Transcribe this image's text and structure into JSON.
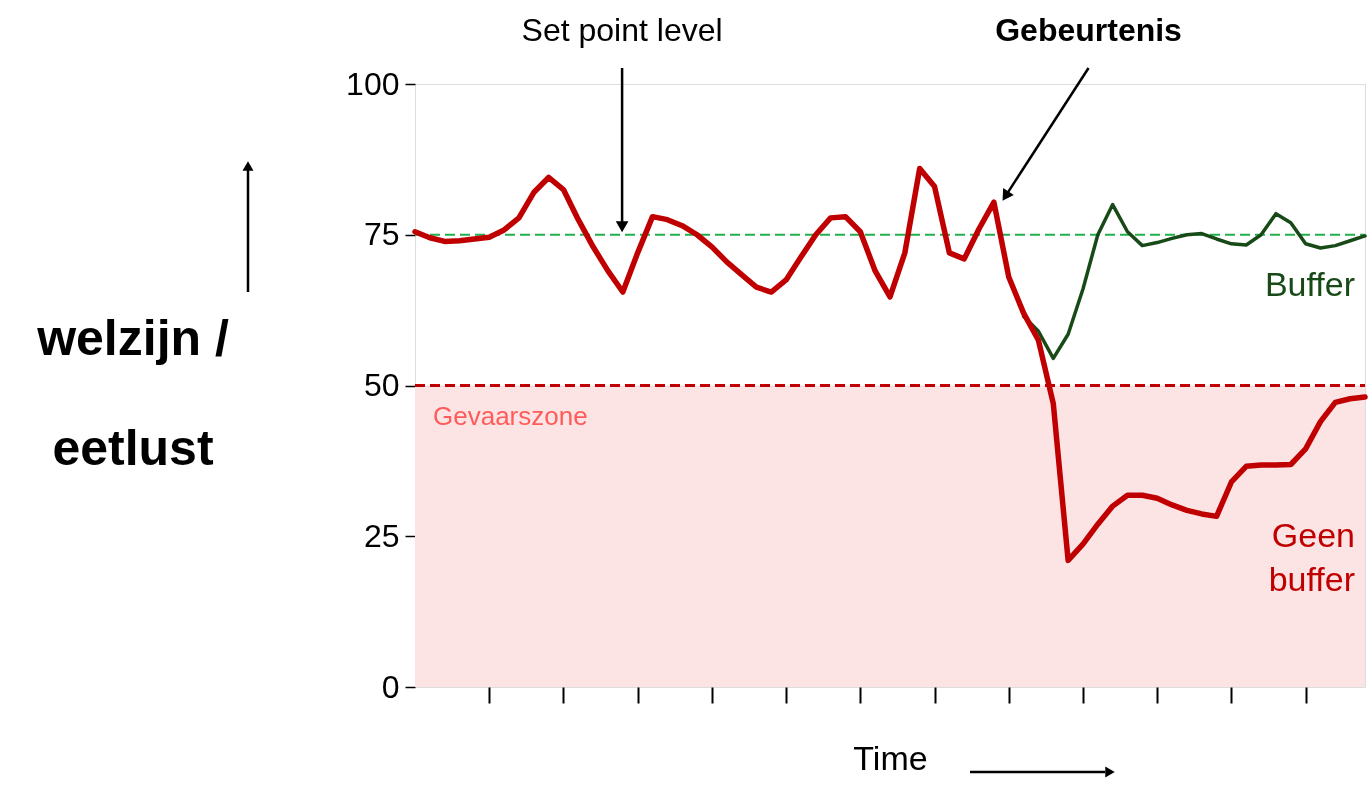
{
  "chart_data": {
    "type": "line",
    "xlabel": "Time",
    "ylabel": "welzijn / eetlust",
    "categories": [
      null,
      null,
      null,
      null,
      null,
      null,
      null,
      null,
      null,
      null,
      null,
      null,
      null,
      null,
      null,
      null,
      null,
      null,
      null,
      null,
      null,
      null,
      null,
      null,
      null,
      null,
      null,
      null,
      null,
      null,
      null,
      null,
      null,
      null,
      null,
      null,
      null,
      null,
      null,
      null,
      null,
      null,
      null,
      null,
      null,
      null,
      null,
      null,
      null,
      null,
      null,
      null,
      null,
      null,
      null,
      null,
      null,
      null,
      null,
      null,
      null,
      null,
      null,
      null,
      null
    ],
    "ylim": [
      0,
      100
    ],
    "yticks": [
      0,
      25,
      50,
      75,
      100
    ],
    "tick_labels": "y",
    "grid": false,
    "line_style": "solid",
    "series": [
      {
        "name": "Buffer",
        "color": "#174a17",
        "values": [
          null,
          null,
          null,
          null,
          null,
          null,
          null,
          null,
          null,
          null,
          null,
          null,
          null,
          null,
          null,
          null,
          null,
          null,
          null,
          null,
          null,
          null,
          null,
          null,
          null,
          null,
          null,
          null,
          null,
          null,
          null,
          null,
          null,
          null,
          null,
          null,
          null,
          null,
          null,
          null,
          null,
          61.5,
          59,
          54.5,
          58.5,
          66,
          75,
          80,
          75.5,
          73.2,
          73.7,
          74.4,
          75,
          75.2,
          74.3,
          73.5,
          73.3,
          75,
          78.5,
          77,
          73.5,
          72.8,
          73.2,
          74,
          74.8
        ]
      },
      {
        "name": "Geen buffer",
        "color": "#c00000",
        "values": [
          75.5,
          74.5,
          73.9,
          74,
          74.3,
          74.6,
          75.8,
          77.8,
          82,
          84.5,
          82.5,
          77.5,
          73,
          69,
          65.5,
          72,
          78,
          77.5,
          76.5,
          75,
          73,
          70.5,
          68.4,
          66.3,
          65.5,
          67.5,
          71.3,
          75,
          77.8,
          78,
          75.5,
          69,
          64.7,
          72,
          86,
          83,
          72,
          71,
          76,
          80.4,
          68,
          62,
          57.5,
          47,
          21,
          23.7,
          27,
          30,
          31.8,
          31.8,
          31.3,
          30.2,
          29.3,
          28.7,
          28.3,
          34,
          36.6,
          36.8,
          36.8,
          36.9,
          39.5,
          44,
          47.2,
          47.8,
          48.1
        ]
      }
    ],
    "ref_lines": [
      {
        "axis": "y",
        "value": 75,
        "color": "#22b04c",
        "line_style": "dashed"
      },
      {
        "axis": "y",
        "value": 50,
        "color": "#c00000",
        "line_style": "dashed"
      }
    ],
    "bands": [
      {
        "axis": "y",
        "from": 0,
        "to": 50,
        "label": "Gevaarszone",
        "color": "#fce4e4"
      }
    ],
    "annotations": [
      {
        "text": "Set point level",
        "y": 75
      },
      "Gebeurtenis"
    ]
  }
}
